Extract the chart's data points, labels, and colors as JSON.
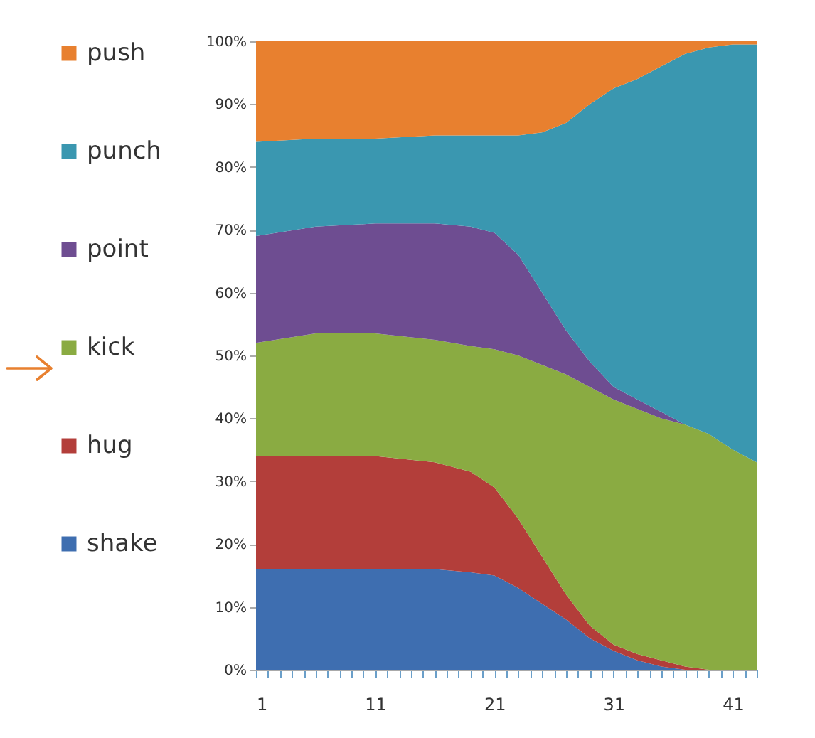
{
  "chart_data": {
    "type": "area",
    "stacked": true,
    "x": [
      1,
      6,
      11,
      16,
      19,
      21,
      23,
      25,
      27,
      29,
      31,
      33,
      35,
      37,
      39,
      41,
      43
    ],
    "series": [
      {
        "name": "shake",
        "color": "#3e6eb0",
        "values": [
          16,
          16,
          16,
          16,
          15.5,
          15,
          13,
          10.5,
          8,
          5,
          3,
          1.5,
          0.5,
          0,
          0,
          0,
          0
        ]
      },
      {
        "name": "hug",
        "color": "#b33e3a",
        "values": [
          18,
          18,
          18,
          17,
          16,
          14,
          11,
          7.5,
          4,
          2,
          1,
          1,
          1,
          0.5,
          0,
          0,
          0
        ]
      },
      {
        "name": "kick",
        "color": "#8aab42",
        "values": [
          18,
          19.5,
          19.5,
          19.5,
          20,
          22,
          26,
          30.5,
          35,
          38,
          39,
          39,
          38.5,
          38.5,
          37.5,
          35,
          33
        ]
      },
      {
        "name": "point",
        "color": "#6e4d91",
        "values": [
          17,
          17,
          17.5,
          18.5,
          19,
          18.5,
          16,
          11.5,
          7,
          4,
          2,
          1.5,
          1,
          0,
          0,
          0,
          0
        ]
      },
      {
        "name": "punch",
        "color": "#3a97b0",
        "values": [
          15,
          14,
          13.5,
          14,
          14.5,
          15.5,
          19,
          25.5,
          33,
          41,
          47.5,
          51,
          55,
          59,
          61.5,
          64.5,
          66.5
        ]
      },
      {
        "name": "push",
        "color": "#e8802f",
        "values": [
          16,
          15.5,
          15.5,
          15,
          15,
          15,
          15,
          14.5,
          13,
          10,
          7.5,
          6,
          4,
          2,
          1,
          0.5,
          0.5
        ]
      }
    ],
    "xlim": [
      1,
      43
    ],
    "xticks": [
      1,
      {
        "value": 2,
        "label": null
      },
      {
        "value": 3,
        "label": null
      },
      {
        "value": 4,
        "label": null
      },
      {
        "value": 5,
        "label": null
      },
      {
        "value": 6,
        "label": null
      },
      {
        "value": 7,
        "label": null
      },
      {
        "value": 8,
        "label": null
      },
      {
        "value": 9,
        "label": null
      },
      {
        "value": 10,
        "label": null
      },
      11,
      {
        "value": 12,
        "label": null
      },
      {
        "value": 13,
        "label": null
      },
      {
        "value": 14,
        "label": null
      },
      {
        "value": 15,
        "label": null
      },
      {
        "value": 16,
        "label": null
      },
      {
        "value": 17,
        "label": null
      },
      {
        "value": 18,
        "label": null
      },
      {
        "value": 19,
        "label": null
      },
      {
        "value": 20,
        "label": null
      },
      21,
      {
        "value": 22,
        "label": null
      },
      {
        "value": 23,
        "label": null
      },
      {
        "value": 24,
        "label": null
      },
      {
        "value": 25,
        "label": null
      },
      {
        "value": 26,
        "label": null
      },
      {
        "value": 27,
        "label": null
      },
      {
        "value": 28,
        "label": null
      },
      {
        "value": 29,
        "label": null
      },
      {
        "value": 30,
        "label": null
      },
      31,
      {
        "value": 32,
        "label": null
      },
      {
        "value": 33,
        "label": null
      },
      {
        "value": 34,
        "label": null
      },
      {
        "value": 35,
        "label": null
      },
      {
        "value": 36,
        "label": null
      },
      {
        "value": 37,
        "label": null
      },
      {
        "value": 38,
        "label": null
      },
      {
        "value": 39,
        "label": null
      },
      {
        "value": 40,
        "label": null
      },
      41,
      {
        "value": 42,
        "label": null
      },
      {
        "value": 43,
        "label": null
      }
    ],
    "ylim": [
      0,
      100
    ],
    "yticks": [
      {
        "value": 0,
        "label": "0%"
      },
      {
        "value": 10,
        "label": "10%"
      },
      {
        "value": 20,
        "label": "20%"
      },
      {
        "value": 30,
        "label": "30%"
      },
      {
        "value": 40,
        "label": "40%"
      },
      {
        "value": 50,
        "label": "50%"
      },
      {
        "value": 60,
        "label": "60%"
      },
      {
        "value": 70,
        "label": "70%"
      },
      {
        "value": 80,
        "label": "80%"
      },
      {
        "value": 90,
        "label": "90%"
      },
      {
        "value": 100,
        "label": "100%"
      }
    ],
    "grid": false,
    "legend": "left"
  }
}
